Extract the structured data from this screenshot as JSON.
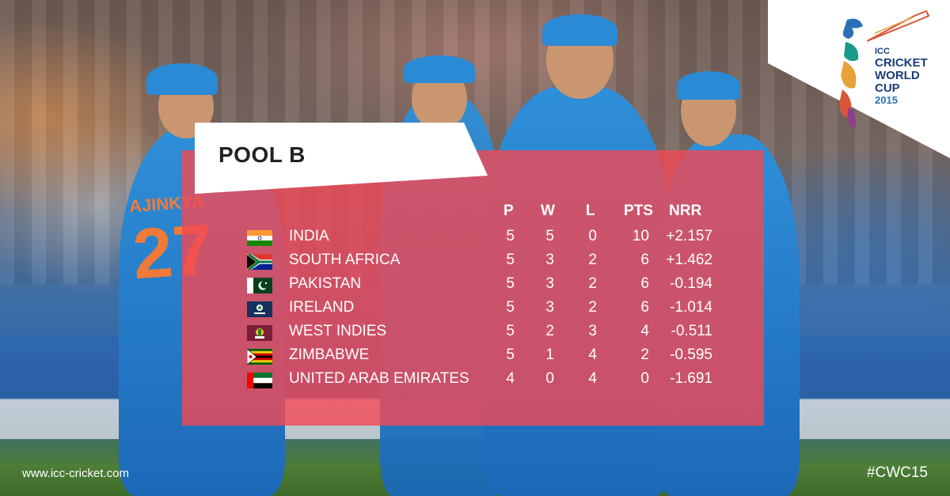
{
  "pool_title": "POOL B",
  "headers": {
    "p": "P",
    "w": "W",
    "l": "L",
    "pts": "PTS",
    "nrr": "NRR"
  },
  "teams": [
    {
      "name": "INDIA",
      "p": "5",
      "w": "5",
      "l": "0",
      "pts": "10",
      "nrr": "+2.157",
      "flag": "india-flag-icon"
    },
    {
      "name": "SOUTH AFRICA",
      "p": "5",
      "w": "3",
      "l": "2",
      "pts": "6",
      "nrr": "+1.462",
      "flag": "south-africa-flag-icon"
    },
    {
      "name": "PAKISTAN",
      "p": "5",
      "w": "3",
      "l": "2",
      "pts": "6",
      "nrr": "-0.194",
      "flag": "pakistan-flag-icon"
    },
    {
      "name": "IRELAND",
      "p": "5",
      "w": "3",
      "l": "2",
      "pts": "6",
      "nrr": "-1.014",
      "flag": "ireland-cricket-flag-icon"
    },
    {
      "name": "WEST INDIES",
      "p": "5",
      "w": "2",
      "l": "3",
      "pts": "4",
      "nrr": "-0.511",
      "flag": "west-indies-flag-icon"
    },
    {
      "name": "ZIMBABWE",
      "p": "5",
      "w": "1",
      "l": "4",
      "pts": "2",
      "nrr": "-0.595",
      "flag": "zimbabwe-flag-icon"
    },
    {
      "name": "UNITED ARAB EMIRATES",
      "p": "4",
      "w": "0",
      "l": "4",
      "pts": "0",
      "nrr": "-1.691",
      "flag": "uae-flag-icon"
    }
  ],
  "footer": {
    "url": "www.icc-cricket.com",
    "hashtag": "#CWC15"
  },
  "logo": {
    "line1": "ICC",
    "line2": "CRICKET",
    "line3": "WORLD",
    "line4": "CUP",
    "line5": "2015"
  },
  "jersey": {
    "name": "AJINKYA",
    "number": "27"
  },
  "colors": {
    "panel": "#f44854",
    "text": "#ffffff",
    "title": "#222222",
    "logo_blue": "#1b3d7a"
  }
}
